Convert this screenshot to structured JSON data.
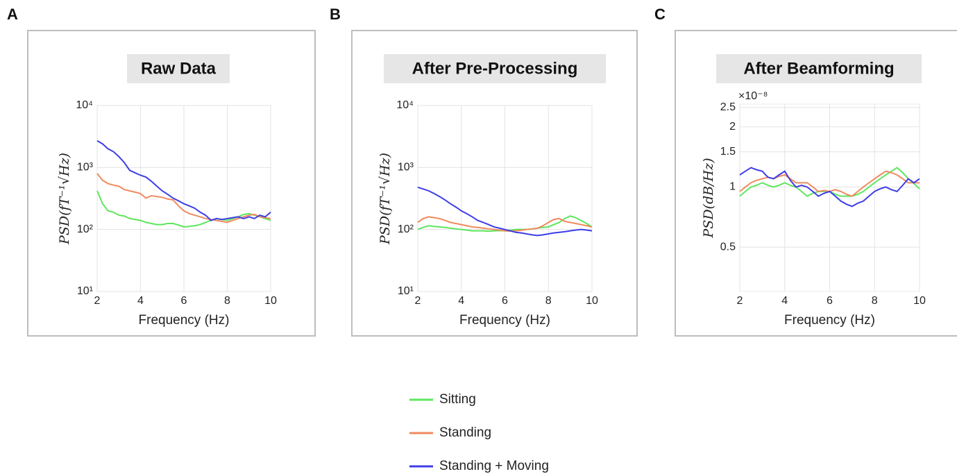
{
  "chart_data": [
    {
      "type": "line",
      "panel": "A",
      "title": "Raw Data",
      "xlabel": "Frequency (Hz)",
      "ylabel": "PSD(fT⁻¹√Hz)",
      "ylog": true,
      "grid": true,
      "x": [
        2,
        2.25,
        2.5,
        2.75,
        3,
        3.25,
        3.5,
        3.75,
        4,
        4.25,
        4.5,
        4.75,
        5,
        5.25,
        5.5,
        5.75,
        6,
        6.25,
        6.5,
        6.75,
        7,
        7.25,
        7.5,
        7.75,
        8,
        8.25,
        8.5,
        8.75,
        9,
        9.25,
        9.5,
        9.75,
        10
      ],
      "xlim": [
        2,
        10
      ],
      "xticks": [
        2,
        4,
        6,
        8,
        10
      ],
      "ylim": [
        10,
        10000
      ],
      "yticks": [
        {
          "value": 10,
          "label": "10¹"
        },
        {
          "value": 100,
          "label": "10²"
        },
        {
          "value": 1000,
          "label": "10³"
        },
        {
          "value": 10000,
          "label": "10⁴"
        }
      ],
      "series": [
        {
          "name": "Sitting",
          "color": "#5de65d",
          "values": [
            420,
            260,
            200,
            190,
            170,
            165,
            150,
            145,
            140,
            130,
            125,
            120,
            120,
            125,
            125,
            118,
            110,
            112,
            115,
            120,
            130,
            140,
            150,
            145,
            140,
            150,
            160,
            175,
            180,
            170,
            160,
            150,
            140
          ]
        },
        {
          "name": "Standing",
          "color": "#f08a5d",
          "values": [
            800,
            620,
            550,
            520,
            500,
            440,
            420,
            400,
            380,
            320,
            350,
            340,
            330,
            310,
            300,
            240,
            200,
            180,
            170,
            160,
            150,
            145,
            140,
            135,
            130,
            140,
            150,
            160,
            170,
            175,
            160,
            155,
            150
          ]
        },
        {
          "name": "Standing + Moving",
          "color": "#3d3de8",
          "values": [
            2700,
            2400,
            2000,
            1800,
            1500,
            1200,
            900,
            820,
            750,
            700,
            600,
            500,
            420,
            370,
            320,
            290,
            260,
            240,
            220,
            190,
            170,
            140,
            150,
            145,
            150,
            155,
            160,
            150,
            160,
            150,
            170,
            160,
            190
          ]
        }
      ]
    },
    {
      "type": "line",
      "panel": "B",
      "title": "After Pre-Processing",
      "xlabel": "Frequency (Hz)",
      "ylabel": "PSD(fT⁻¹√Hz)",
      "ylog": true,
      "grid": true,
      "x": [
        2,
        2.25,
        2.5,
        2.75,
        3,
        3.25,
        3.5,
        3.75,
        4,
        4.25,
        4.5,
        4.75,
        5,
        5.25,
        5.5,
        5.75,
        6,
        6.25,
        6.5,
        6.75,
        7,
        7.25,
        7.5,
        7.75,
        8,
        8.25,
        8.5,
        8.75,
        9,
        9.25,
        9.5,
        9.75,
        10
      ],
      "xlim": [
        2,
        10
      ],
      "xticks": [
        2,
        4,
        6,
        8,
        10
      ],
      "ylim": [
        10,
        10000
      ],
      "yticks": [
        {
          "value": 10,
          "label": "10¹"
        },
        {
          "value": 100,
          "label": "10²"
        },
        {
          "value": 1000,
          "label": "10³"
        },
        {
          "value": 10000,
          "label": "10⁴"
        }
      ],
      "series": [
        {
          "name": "Sitting",
          "color": "#5de65d",
          "values": [
            100,
            108,
            115,
            112,
            110,
            108,
            105,
            102,
            100,
            98,
            95,
            95,
            95,
            94,
            95,
            96,
            95,
            98,
            100,
            100,
            100,
            102,
            105,
            108,
            110,
            120,
            130,
            150,
            165,
            155,
            140,
            125,
            110
          ]
        },
        {
          "name": "Standing",
          "color": "#f08a5d",
          "values": [
            130,
            150,
            160,
            155,
            150,
            140,
            130,
            125,
            120,
            115,
            110,
            108,
            105,
            102,
            100,
            98,
            95,
            94,
            95,
            97,
            100,
            102,
            105,
            115,
            130,
            145,
            150,
            135,
            130,
            125,
            120,
            115,
            110
          ]
        },
        {
          "name": "Standing + Moving",
          "color": "#3d3de8",
          "values": [
            480,
            450,
            420,
            380,
            340,
            300,
            260,
            230,
            200,
            180,
            160,
            140,
            130,
            120,
            110,
            105,
            100,
            95,
            90,
            88,
            85,
            82,
            80,
            82,
            85,
            88,
            90,
            92,
            95,
            98,
            100,
            98,
            95
          ]
        }
      ]
    },
    {
      "type": "line",
      "panel": "C",
      "title": "After Beamforming",
      "xlabel": "Frequency (Hz)",
      "ylabel": "PSD(dB/Hz)",
      "y_multiplier": "×10⁻⁸",
      "ylog": true,
      "grid": true,
      "x": [
        2,
        2.25,
        2.5,
        2.75,
        3,
        3.25,
        3.5,
        3.75,
        4,
        4.25,
        4.5,
        4.75,
        5,
        5.25,
        5.5,
        5.75,
        6,
        6.25,
        6.5,
        6.75,
        7,
        7.25,
        7.5,
        7.75,
        8,
        8.25,
        8.5,
        8.75,
        9,
        9.25,
        9.5,
        9.75,
        10
      ],
      "xlim": [
        2,
        10
      ],
      "xticks": [
        2,
        4,
        6,
        8,
        10
      ],
      "ylim": [
        0.3,
        2.6
      ],
      "yticks": [
        0.5,
        1,
        1.5,
        2,
        2.5
      ],
      "series": [
        {
          "name": "Sitting",
          "color": "#5de65d",
          "values": [
            0.9,
            0.95,
            1.0,
            1.02,
            1.05,
            1.02,
            1.0,
            1.02,
            1.05,
            1.02,
            1.0,
            0.95,
            0.9,
            0.93,
            0.95,
            0.95,
            0.95,
            0.92,
            0.9,
            0.9,
            0.9,
            0.92,
            0.95,
            1.0,
            1.05,
            1.1,
            1.15,
            1.2,
            1.25,
            1.18,
            1.1,
            1.04,
            0.98
          ]
        },
        {
          "name": "Standing",
          "color": "#f08a5d",
          "values": [
            0.95,
            1.0,
            1.05,
            1.08,
            1.1,
            1.12,
            1.1,
            1.13,
            1.15,
            1.1,
            1.05,
            1.05,
            1.05,
            1.0,
            0.95,
            0.96,
            0.95,
            0.97,
            0.95,
            0.92,
            0.9,
            0.95,
            1.0,
            1.05,
            1.1,
            1.15,
            1.2,
            1.18,
            1.15,
            1.1,
            1.05,
            1.05,
            1.05
          ]
        },
        {
          "name": "Standing + Moving",
          "color": "#3d3de8",
          "values": [
            1.15,
            1.2,
            1.25,
            1.22,
            1.2,
            1.12,
            1.1,
            1.15,
            1.2,
            1.08,
            1.0,
            1.02,
            1.0,
            0.95,
            0.9,
            0.93,
            0.95,
            0.9,
            0.85,
            0.82,
            0.8,
            0.83,
            0.85,
            0.9,
            0.95,
            0.98,
            1.0,
            0.97,
            0.95,
            1.02,
            1.1,
            1.05,
            1.1
          ]
        }
      ]
    }
  ]
}
